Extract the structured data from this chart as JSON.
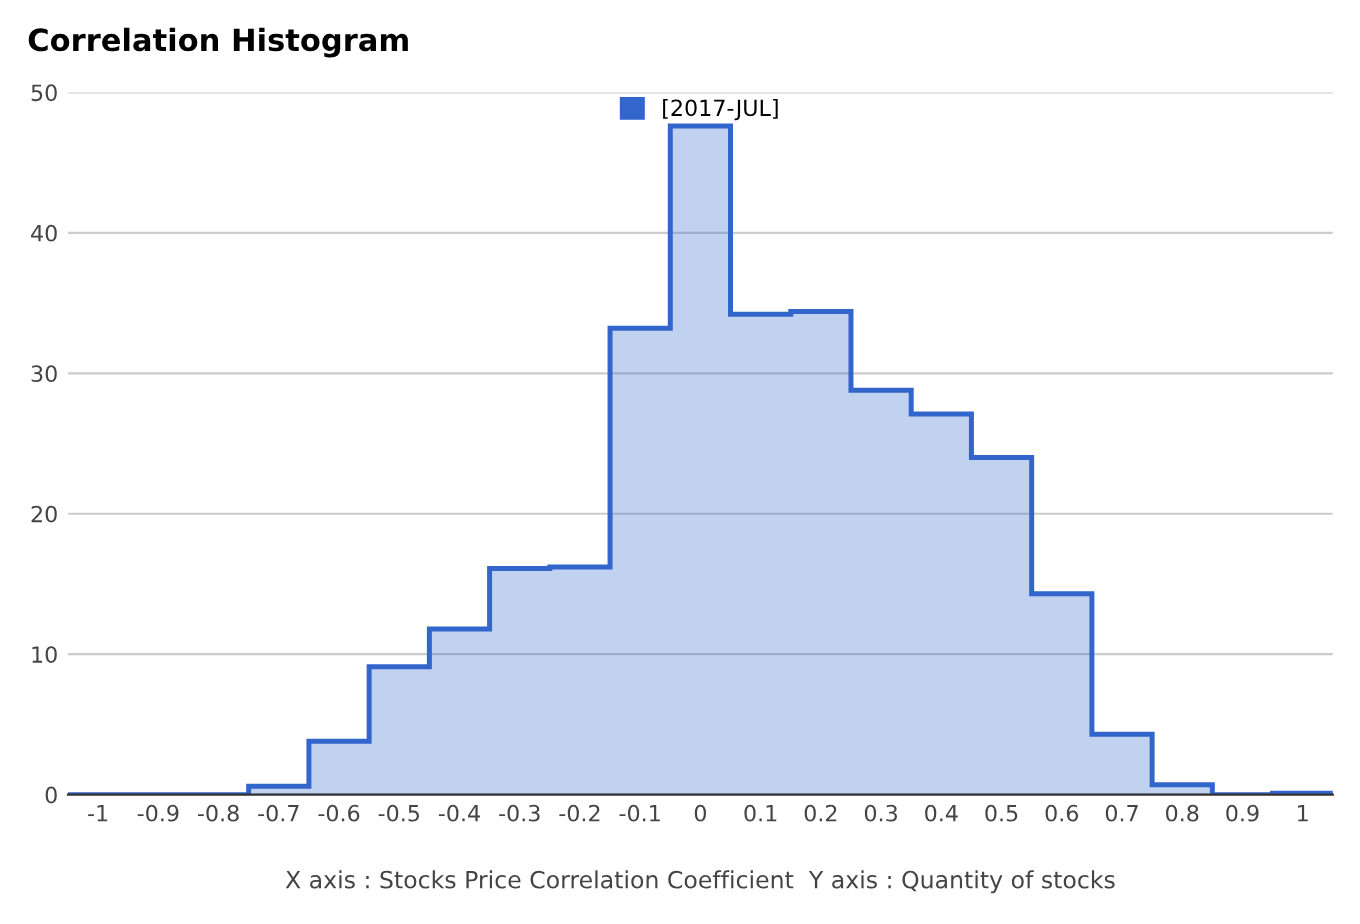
{
  "chart_data": {
    "type": "histogram",
    "title": "Correlation Histogram",
    "xlabel": "X axis : Stocks Price Correlation Coefficient  Y axis : Quantity of stocks",
    "bins": [
      -1.05,
      -0.95,
      -0.85,
      -0.75,
      -0.65,
      -0.55,
      -0.45,
      -0.35,
      -0.25,
      -0.15,
      -0.05,
      0.05,
      0.15,
      0.25,
      0.35,
      0.45,
      0.55,
      0.65,
      0.75,
      0.85,
      0.95,
      1.05
    ],
    "series": [
      {
        "name": "[2017-JUL]",
        "color": "#3366cc",
        "values": [
          0,
          0,
          0,
          0.6,
          3.8,
          9.1,
          11.8,
          16.1,
          16.2,
          33.2,
          47.6,
          34.2,
          34.4,
          28.8,
          27.1,
          24.0,
          14.3,
          4.3,
          0.7,
          0,
          0.1
        ]
      }
    ],
    "xlim": [
      -1.05,
      1.05
    ],
    "xticks": [
      -1,
      -0.9,
      -0.8,
      -0.7,
      -0.6,
      -0.5,
      -0.4,
      -0.3,
      -0.2,
      -0.1,
      0,
      0.1,
      0.2,
      0.3,
      0.4,
      0.5,
      0.6,
      0.7,
      0.8,
      0.9,
      1
    ],
    "ylim": [
      0,
      50
    ],
    "yticks": [
      0,
      10,
      20,
      30,
      40,
      50
    ],
    "grid": "y",
    "legend": "top"
  }
}
